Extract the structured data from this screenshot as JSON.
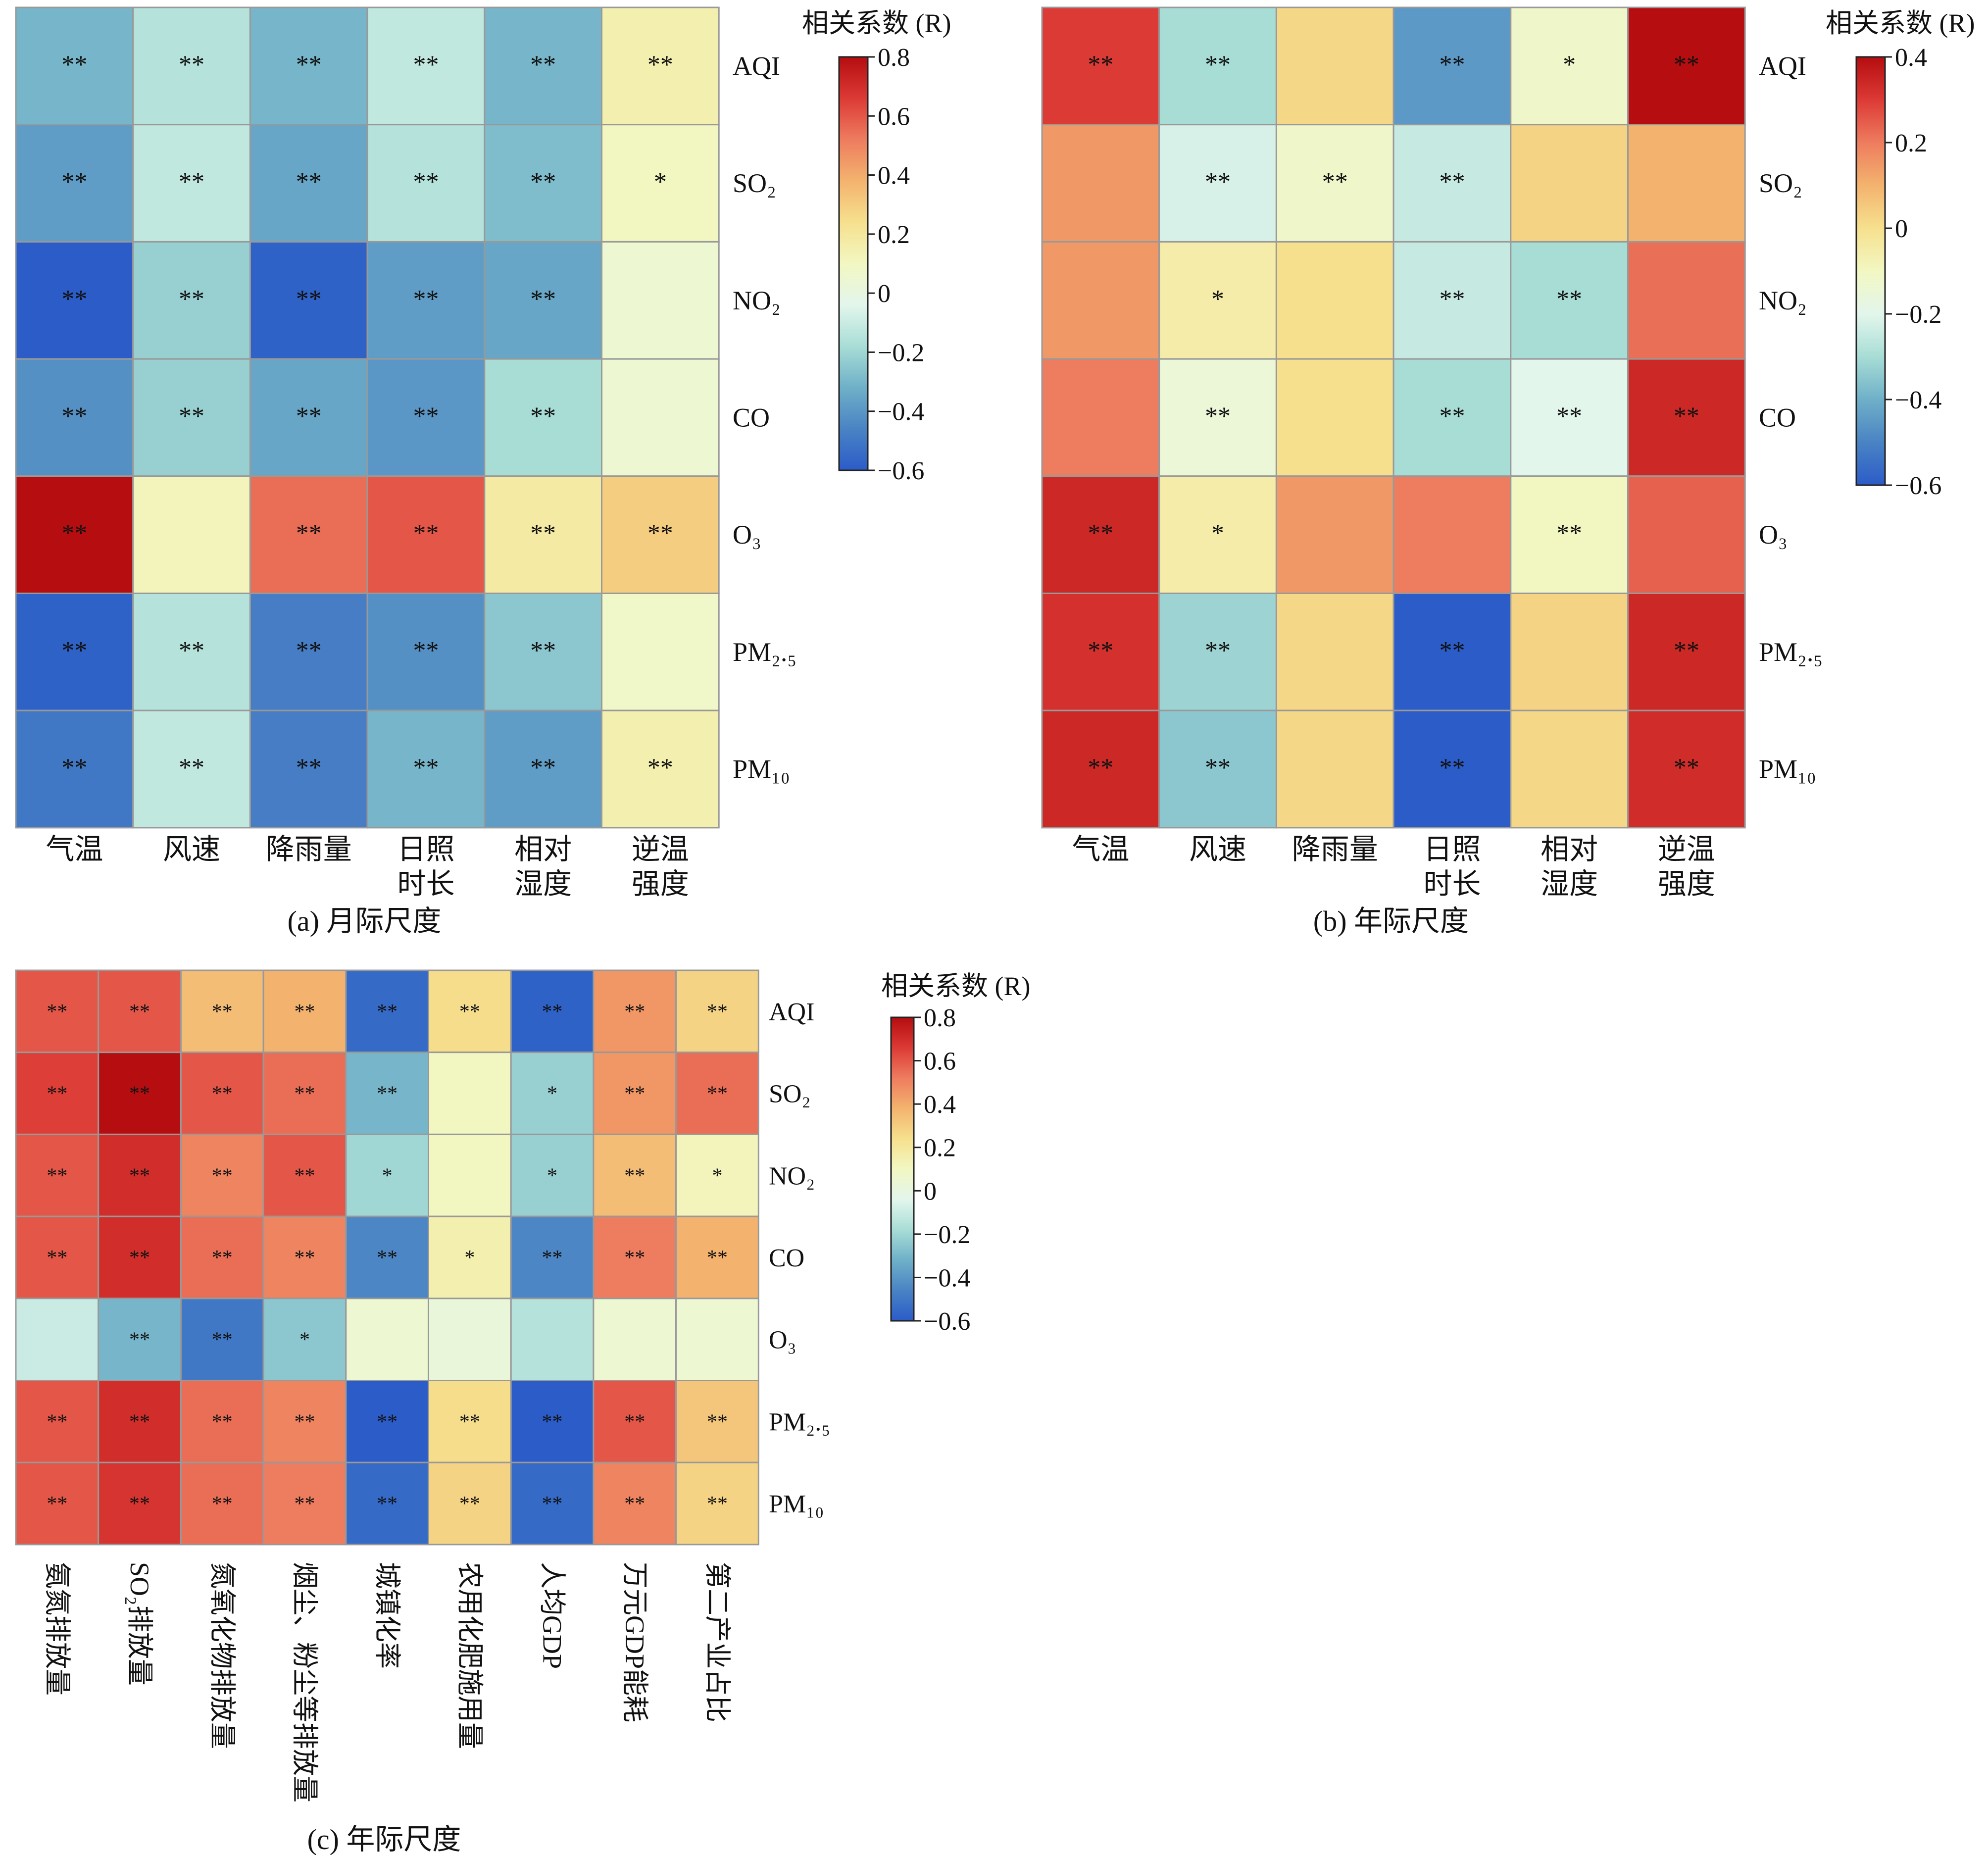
{
  "colors": {
    "colormap": [
      "#2b5cc8",
      "#4a83c4",
      "#6fb0c8",
      "#a8ddd6",
      "#e3f6ec",
      "#f2f7c2",
      "#f6e08e",
      "#f3b36e",
      "#ee7c5f",
      "#dc3a35",
      "#b50d10"
    ],
    "cell_border": "#999999",
    "text": "#111111"
  },
  "chart_data": [
    {
      "type": "heatmap",
      "panel": "a",
      "caption": "(a) 月际尺度",
      "colorbar_title": "相关系数 (R)",
      "colorbar_ticks": [
        "0.8",
        "0.6",
        "0.4",
        "0.2",
        "0",
        "−0.2",
        "−0.4",
        "−0.6"
      ],
      "vmin": -0.6,
      "vmax": 0.8,
      "rows": [
        "AQI",
        "SO₂",
        "NO₂",
        "CO",
        "O₃",
        "PM₂.₅",
        "PM₁₀"
      ],
      "columns": [
        "气温",
        "风速",
        "降雨量",
        "日照\n时长",
        "相对\n湿度",
        "逆温\n强度"
      ],
      "values": [
        [
          -0.3,
          -0.15,
          -0.3,
          -0.12,
          -0.3,
          0.15
        ],
        [
          -0.38,
          -0.12,
          -0.35,
          -0.15,
          -0.28,
          0.1
        ],
        [
          -0.6,
          -0.22,
          -0.58,
          -0.38,
          -0.35,
          0.05
        ],
        [
          -0.42,
          -0.22,
          -0.35,
          -0.4,
          -0.18,
          0.05
        ],
        [
          0.8,
          0.12,
          0.55,
          0.6,
          0.18,
          0.3
        ],
        [
          -0.58,
          -0.15,
          -0.48,
          -0.42,
          -0.25,
          0.08
        ],
        [
          -0.5,
          -0.12,
          -0.48,
          -0.3,
          -0.38,
          0.15
        ]
      ],
      "significance": [
        [
          "**",
          "**",
          "**",
          "**",
          "**",
          "**"
        ],
        [
          "**",
          "**",
          "**",
          "**",
          "**",
          "*"
        ],
        [
          "**",
          "**",
          "**",
          "**",
          "**",
          ""
        ],
        [
          "**",
          "**",
          "**",
          "**",
          "**",
          ""
        ],
        [
          "**",
          "",
          "**",
          "**",
          "**",
          "**"
        ],
        [
          "**",
          "**",
          "**",
          "**",
          "**",
          ""
        ],
        [
          "**",
          "**",
          "**",
          "**",
          "**",
          "**"
        ]
      ]
    },
    {
      "type": "heatmap",
      "panel": "b",
      "caption": "(b) 年际尺度",
      "colorbar_title": "相关系数 (R)",
      "colorbar_ticks": [
        "0.4",
        "0.2",
        "0",
        "−0.2",
        "−0.4",
        "−0.6"
      ],
      "vmin": -0.6,
      "vmax": 0.4,
      "rows": [
        "AQI",
        "SO₂",
        "NO₂",
        "CO",
        "O₃",
        "PM₂.₅",
        "PM₁₀"
      ],
      "columns": [
        "气温",
        "风速",
        "降雨量",
        "日照\n时长",
        "相对\n湿度",
        "逆温\n强度"
      ],
      "values": [
        [
          0.3,
          -0.3,
          0.02,
          -0.45,
          -0.12,
          0.4
        ],
        [
          0.15,
          -0.22,
          -0.12,
          -0.25,
          0.03,
          0.1
        ],
        [
          0.15,
          -0.05,
          0.0,
          -0.25,
          -0.3,
          0.22
        ],
        [
          0.2,
          -0.15,
          0.0,
          -0.3,
          -0.2,
          0.34
        ],
        [
          0.34,
          -0.05,
          0.15,
          0.2,
          -0.1,
          0.24
        ],
        [
          0.32,
          -0.32,
          0.02,
          -0.6,
          0.03,
          0.34
        ],
        [
          0.34,
          -0.35,
          0.02,
          -0.6,
          0.02,
          0.33
        ]
      ],
      "significance": [
        [
          "**",
          "**",
          "",
          "**",
          "*",
          "**"
        ],
        [
          "",
          "**",
          "**",
          "**",
          "",
          ""
        ],
        [
          "",
          "*",
          "",
          "**",
          "**",
          ""
        ],
        [
          "",
          "**",
          "",
          "**",
          "**",
          "**"
        ],
        [
          "**",
          "*",
          "",
          "",
          "**",
          ""
        ],
        [
          "**",
          "**",
          "",
          "**",
          "",
          "**"
        ],
        [
          "**",
          "**",
          "",
          "**",
          "",
          "**"
        ]
      ]
    },
    {
      "type": "heatmap",
      "panel": "c",
      "caption": "(c) 年际尺度",
      "colorbar_title": "相关系数 (R)",
      "colorbar_ticks": [
        "0.8",
        "0.6",
        "0.4",
        "0.2",
        "0",
        "−0.2",
        "−0.4",
        "−0.6"
      ],
      "vmin": -0.6,
      "vmax": 0.8,
      "rows": [
        "AQI",
        "SO₂",
        "NO₂",
        "CO",
        "O₃",
        "PM₂.₅",
        "PM₁₀"
      ],
      "columns": [
        "氨氮排放量",
        "SO₂排放量",
        "氮氧化物排放量",
        "烟尘、粉尘等排放量",
        "城镇化率",
        "农用化肥施用量",
        "人均GDP",
        "万元GDP能耗",
        "第二产业占比"
      ],
      "values": [
        [
          0.6,
          0.6,
          0.35,
          0.38,
          -0.55,
          0.25,
          -0.58,
          0.45,
          0.28
        ],
        [
          0.65,
          0.8,
          0.6,
          0.55,
          -0.3,
          0.1,
          -0.22,
          0.45,
          0.55
        ],
        [
          0.6,
          0.7,
          0.5,
          0.6,
          -0.2,
          0.1,
          -0.22,
          0.35,
          0.12
        ],
        [
          0.6,
          0.7,
          0.55,
          0.5,
          -0.45,
          0.15,
          -0.45,
          0.52,
          0.38
        ],
        [
          -0.1,
          -0.3,
          -0.5,
          -0.25,
          0.05,
          0.02,
          -0.15,
          0.05,
          0.05
        ],
        [
          0.6,
          0.7,
          0.55,
          0.5,
          -0.6,
          0.25,
          -0.6,
          0.6,
          0.32
        ],
        [
          0.6,
          0.68,
          0.55,
          0.52,
          -0.55,
          0.28,
          -0.55,
          0.5,
          0.28
        ]
      ],
      "significance": [
        [
          "**",
          "**",
          "**",
          "**",
          "**",
          "**",
          "**",
          "**",
          "**"
        ],
        [
          "**",
          "**",
          "**",
          "**",
          "**",
          "",
          "*",
          "**",
          "**"
        ],
        [
          "**",
          "**",
          "**",
          "**",
          "*",
          "",
          "*",
          "**",
          "*"
        ],
        [
          "**",
          "**",
          "**",
          "**",
          "**",
          "*",
          "**",
          "**",
          "**"
        ],
        [
          "",
          "**",
          "**",
          "*",
          "",
          "",
          "",
          "",
          ""
        ],
        [
          "**",
          "**",
          "**",
          "**",
          "**",
          "**",
          "**",
          "**",
          "**"
        ],
        [
          "**",
          "**",
          "**",
          "**",
          "**",
          "**",
          "**",
          "**",
          "**"
        ]
      ]
    }
  ]
}
